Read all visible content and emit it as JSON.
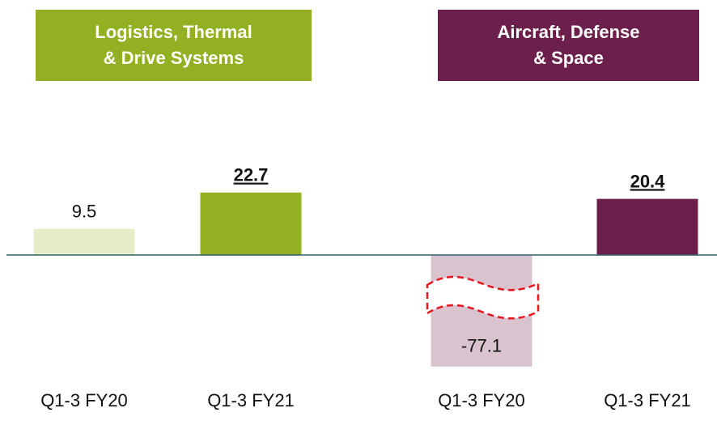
{
  "chart_data": {
    "type": "bar",
    "groups": [
      {
        "title": "Logistics, Thermal\n& Drive Systems",
        "color": "#93b023"
      },
      {
        "title": "Aircraft, Defense\n& Space",
        "color": "#6d1f4b"
      }
    ],
    "categories": [
      "Q1-3 FY20",
      "Q1-3 FY21",
      "Q1-3 FY20",
      "Q1-3 FY21"
    ],
    "values": [
      9.5,
      22.7,
      -77.1,
      20.4
    ],
    "colors": [
      "#e5ecc7",
      "#93b023",
      "#d9c3cf",
      "#6d1f4b"
    ],
    "highlight": [
      false,
      true,
      false,
      true
    ],
    "ylim": [
      -80,
      25
    ],
    "axis_break": true
  }
}
